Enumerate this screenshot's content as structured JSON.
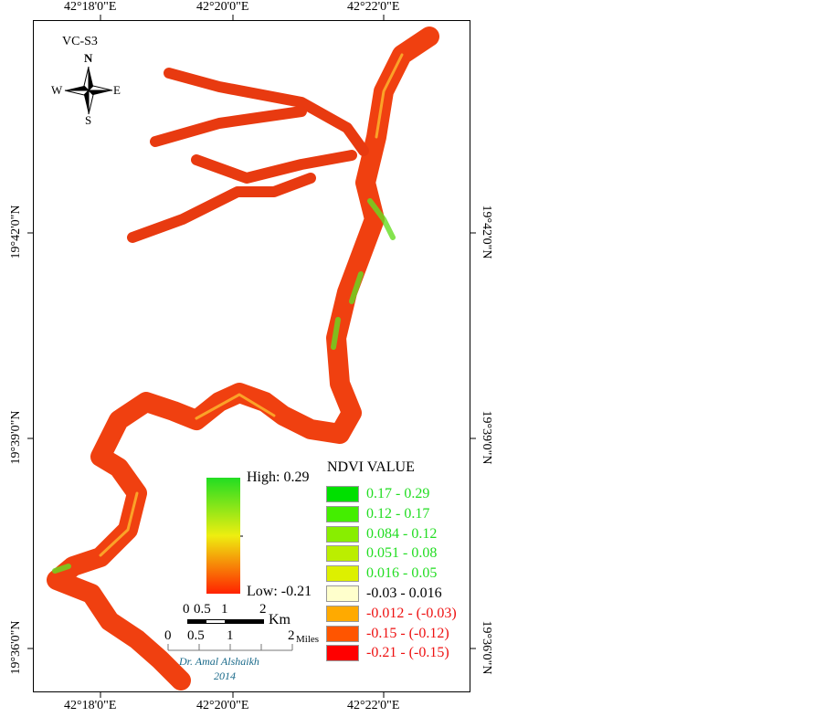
{
  "title": "VC-S3",
  "north_arrow": {
    "n": "N",
    "s": "S",
    "e": "E",
    "w": "W"
  },
  "axes": {
    "top": [
      "42°18'0\"E",
      "42°20'0\"E",
      "42°22'0\"E"
    ],
    "bottom": [
      "42°18'0\"E",
      "42°20'0\"E",
      "42°22'0\"E"
    ],
    "left": [
      "19°42'0\"N",
      "19°39'0\"N",
      "19°36'0\"N"
    ],
    "right": [
      "19°42'0\"N",
      "19°39'0\"N",
      "19°36'0\"N"
    ]
  },
  "gradient": {
    "high": "High: 0.29",
    "low": "Low: -0.21"
  },
  "scale_km": {
    "ticks": [
      "0",
      "0.5",
      "1",
      "2"
    ],
    "unit": "Km"
  },
  "scale_miles": {
    "ticks": [
      "0",
      "0.5",
      "1",
      "2"
    ],
    "unit": "Miles"
  },
  "credit": {
    "author": "Dr. Amal Alshaikh",
    "year": "2014"
  },
  "legend": {
    "title": "NDVI VALUE",
    "items": [
      {
        "label": "0.17 - 0.29",
        "color": "#00e000",
        "text_color": "#22dd22"
      },
      {
        "label": "0.12 - 0.17",
        "color": "#44ee00",
        "text_color": "#22dd22"
      },
      {
        "label": "0.084 - 0.12",
        "color": "#88ee00",
        "text_color": "#22dd22"
      },
      {
        "label": "0.051 - 0.08",
        "color": "#bbee00",
        "text_color": "#22dd22"
      },
      {
        "label": "0.016 - 0.05",
        "color": "#ddf000",
        "text_color": "#22dd22"
      },
      {
        "label": "-0.03 - 0.016",
        "color": "#ffffcc",
        "text_color": "#000000"
      },
      {
        "label": "-0.012 - (-0.03)",
        "color": "#ffaa00",
        "text_color": "#ee1111"
      },
      {
        "label": "-0.15 - (-0.12)",
        "color": "#ff5500",
        "text_color": "#ee1111"
      },
      {
        "label": "-0.21 - (-0.15)",
        "color": "#ff0000",
        "text_color": "#ee1111"
      }
    ]
  }
}
